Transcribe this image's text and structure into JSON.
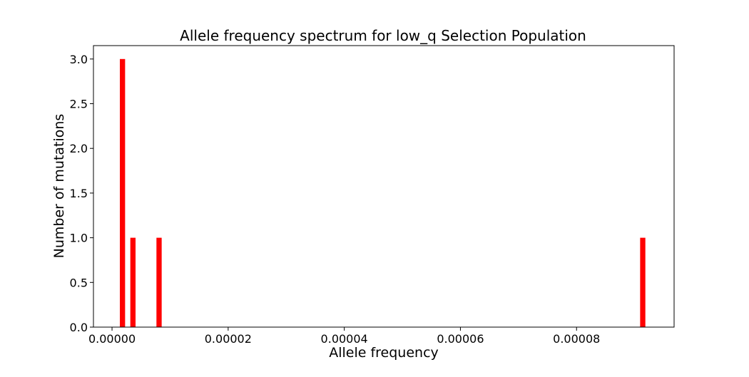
{
  "chart_data": {
    "type": "bar",
    "title": "Allele frequency spectrum for low_q Selection Population",
    "xlabel": "Allele frequency",
    "ylabel": "Number of mutations",
    "x": [
      1.8e-06,
      3.6e-06,
      8.1e-06,
      9.14e-05
    ],
    "values": [
      3,
      1,
      1,
      1
    ],
    "bar_width": 9e-07,
    "bar_color": "#ff0000",
    "xlim": [
      -3.2e-06,
      9.68e-05
    ],
    "ylim": [
      0,
      3.15
    ],
    "xticks": [
      0,
      2e-05,
      4e-05,
      6e-05,
      8e-05
    ],
    "xtick_labels": [
      "0.00000",
      "0.00002",
      "0.00004",
      "0.00006",
      "0.00008"
    ],
    "yticks": [
      0,
      0.5,
      1,
      1.5,
      2,
      2.5,
      3
    ],
    "ytick_labels": [
      "0.0",
      "0.5",
      "1.0",
      "1.5",
      "2.0",
      "2.5",
      "3.0"
    ],
    "grid": false,
    "legend": "none"
  }
}
